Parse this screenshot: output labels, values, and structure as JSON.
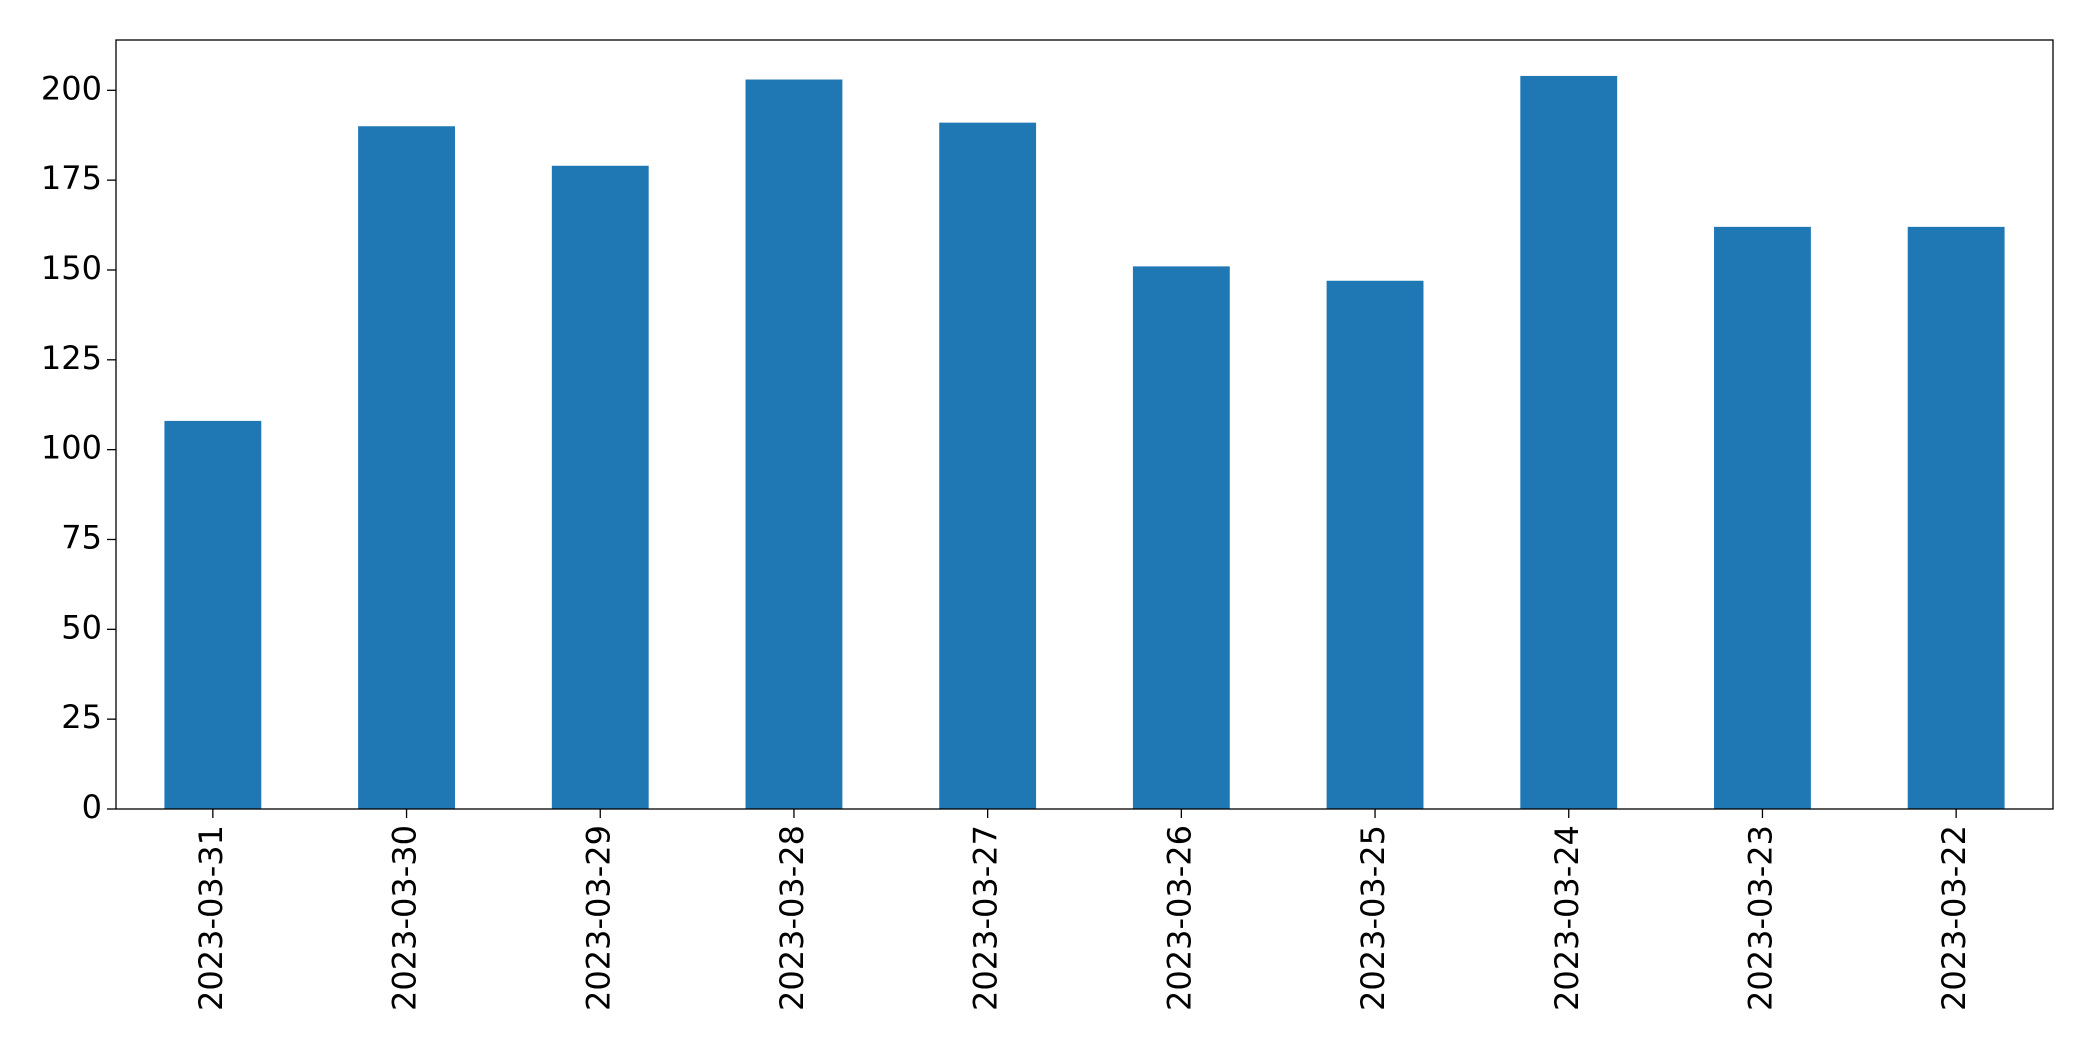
{
  "chart_data": {
    "type": "bar",
    "categories": [
      "2023-03-31",
      "2023-03-30",
      "2023-03-29",
      "2023-03-28",
      "2023-03-27",
      "2023-03-26",
      "2023-03-25",
      "2023-03-24",
      "2023-03-23",
      "2023-03-22"
    ],
    "values": [
      108,
      190,
      179,
      203,
      191,
      151,
      147,
      204,
      162,
      162
    ],
    "color": "#1f77b4",
    "ylim": [
      0,
      214
    ],
    "yticks": [
      0,
      25,
      50,
      75,
      100,
      125,
      150,
      175,
      200
    ],
    "grid": false
  }
}
